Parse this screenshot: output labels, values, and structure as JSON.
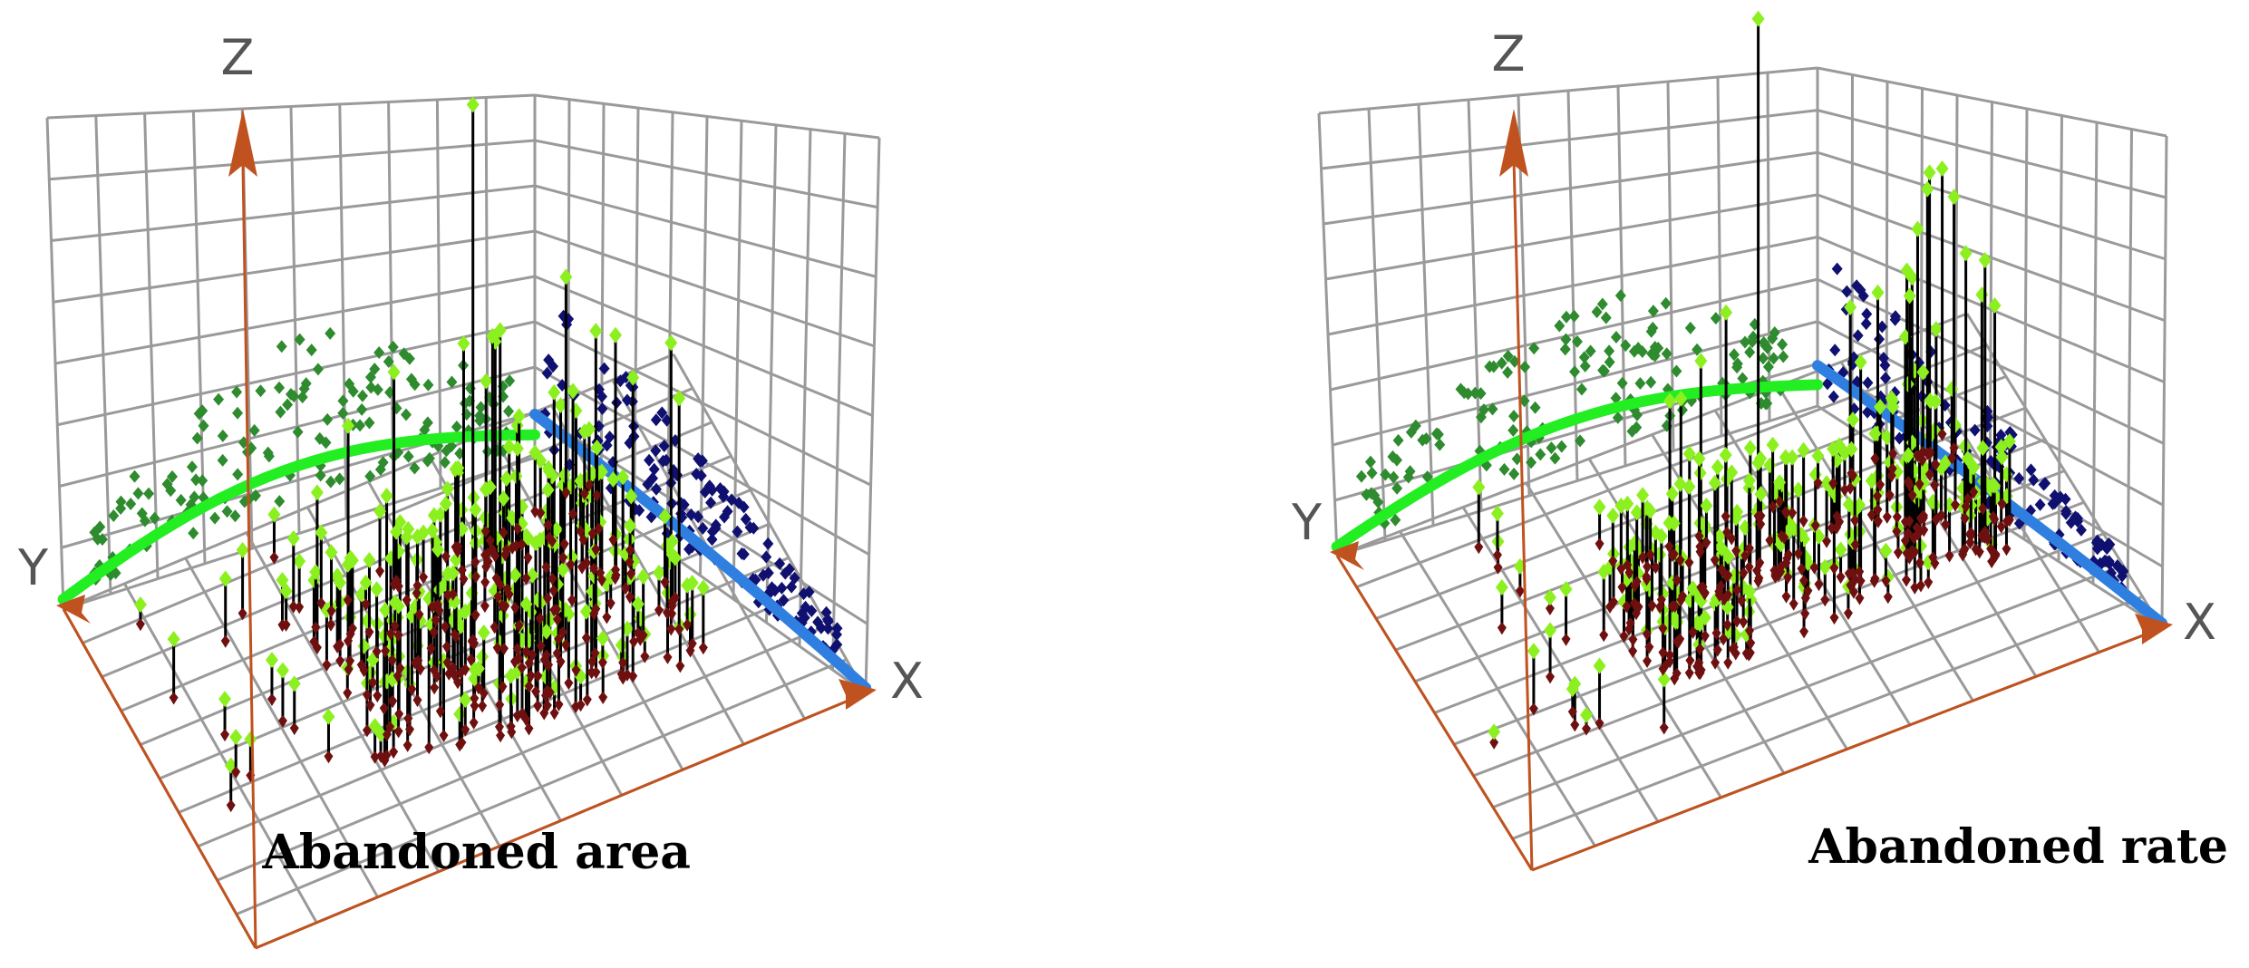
{
  "colors": {
    "grid": "#9a9a9a",
    "axis": "#c0521f",
    "projection_yz": "#2e8b2e",
    "fit_yz": "#22ee22",
    "projection_xz": "#101070",
    "fit_xz": "#2f7fe0",
    "point_top": "#8cf01e",
    "point_base": "#6e1010",
    "stem": "#000000"
  },
  "chart_data": [
    {
      "type": "scatter",
      "caption": "Abandoned area",
      "axes": {
        "x_label": "X",
        "y_label": "Y",
        "z_label": "Z"
      },
      "grid": true,
      "series": [
        {
          "kind": "points_with_stems"
        },
        {
          "kind": "projection_yz_plane"
        },
        {
          "kind": "projection_xz_plane"
        },
        {
          "kind": "trend_yz"
        },
        {
          "kind": "trend_xz"
        }
      ]
    },
    {
      "type": "scatter",
      "caption": "Abandoned rate",
      "axes": {
        "x_label": "X",
        "y_label": "Y",
        "z_label": "Z"
      },
      "grid": true,
      "series": [
        {
          "kind": "points_with_stems"
        },
        {
          "kind": "projection_yz_plane"
        },
        {
          "kind": "projection_xz_plane"
        },
        {
          "kind": "trend_yz"
        },
        {
          "kind": "trend_xz"
        }
      ]
    }
  ]
}
